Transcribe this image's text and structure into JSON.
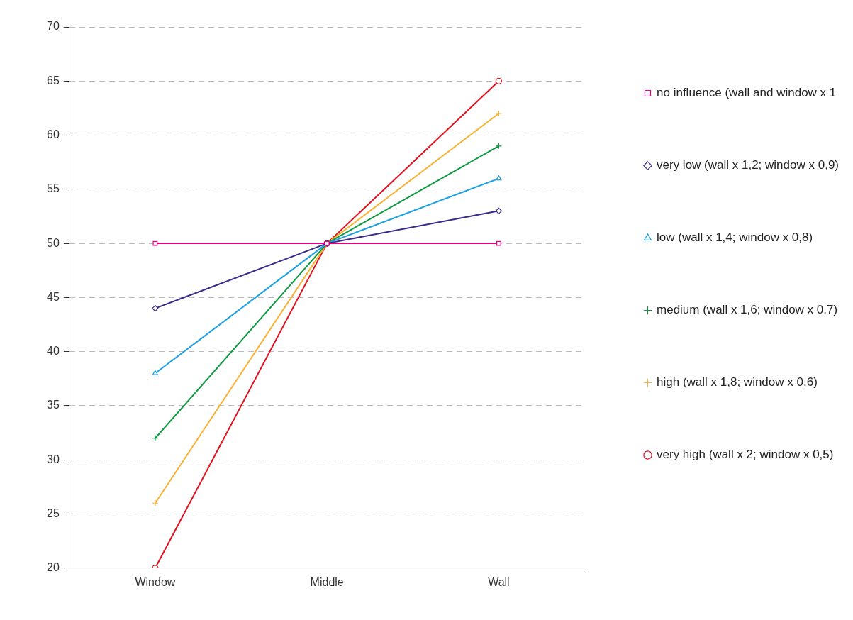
{
  "chart_data": {
    "type": "line",
    "categories": [
      "Window",
      "Middle",
      "Wall"
    ],
    "ylim": [
      20,
      70
    ],
    "yticks": [
      20,
      25,
      30,
      35,
      40,
      45,
      50,
      55,
      60,
      65,
      70
    ],
    "grid": "y",
    "legend": "right",
    "line_style": "solid",
    "series": [
      {
        "name": "no influence (wall and window x 1",
        "color": "#e5007d",
        "marker": "square",
        "values": [
          50,
          50,
          50
        ]
      },
      {
        "name": "very low (wall x 1,2; window x 0,9)",
        "color": "#3c2a8c",
        "marker": "diamond",
        "values": [
          44,
          50,
          53
        ]
      },
      {
        "name": "low (wall x 1,4; window x 0,8)",
        "color": "#1ba1e2",
        "marker": "triangle",
        "values": [
          38,
          50,
          56
        ]
      },
      {
        "name": "medium (wall x 1,6; window x 0,7)",
        "color": "#0d9a40",
        "marker": "cross",
        "values": [
          32,
          50,
          59
        ]
      },
      {
        "name": "high (wall x 1,8; window x 0,6)",
        "color": "#f8b133",
        "marker": "cross",
        "values": [
          26,
          50,
          62
        ]
      },
      {
        "name": "very high (wall x 2; window x 0,5)",
        "color": "#e3101e",
        "marker": "circle",
        "values": [
          20,
          50,
          65
        ]
      }
    ]
  }
}
